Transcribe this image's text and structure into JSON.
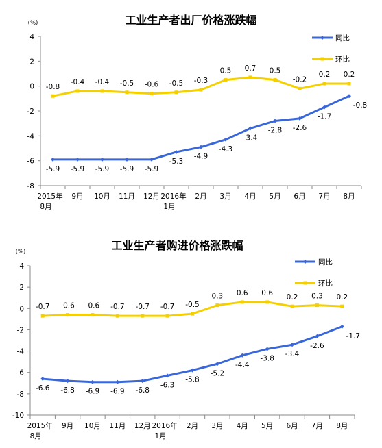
{
  "chart_data": [
    {
      "type": "line",
      "title": "工业生产者出厂价格涨跌幅",
      "unit": "(%)",
      "categories": [
        [
          "2015年",
          "8月"
        ],
        [
          "9月"
        ],
        [
          "10月"
        ],
        [
          "11月"
        ],
        [
          "12月"
        ],
        [
          "2016年",
          "1月"
        ],
        [
          "2月"
        ],
        [
          "3月"
        ],
        [
          "4月"
        ],
        [
          "5月"
        ],
        [
          "6月"
        ],
        [
          "7月"
        ],
        [
          "8月"
        ]
      ],
      "ylim": [
        -8,
        4
      ],
      "yticks": [
        4,
        2,
        0,
        -2,
        -4,
        -6,
        -8
      ],
      "legend": "top-right",
      "series": [
        {
          "name": "同比",
          "color": "#3A67D8",
          "values": [
            -5.9,
            -5.9,
            -5.9,
            -5.9,
            -5.9,
            -5.3,
            -4.9,
            -4.3,
            -3.4,
            -2.8,
            -2.6,
            -1.7,
            -0.8
          ],
          "labels": [
            "-5.9",
            "-5.9",
            "-5.9",
            "-5.9",
            "-5.9",
            "-5.3",
            "-4.9",
            "-4.3",
            "-3.4",
            "-2.8",
            "-2.6",
            "-1.7",
            "-0.8"
          ]
        },
        {
          "name": "环比",
          "color": "#F5D000",
          "values": [
            -0.8,
            -0.4,
            -0.4,
            -0.5,
            -0.6,
            -0.5,
            -0.3,
            0.5,
            0.7,
            0.5,
            -0.2,
            0.2,
            0.2
          ],
          "labels": [
            "-0.8",
            "-0.4",
            "-0.4",
            "-0.5",
            "-0.6",
            "-0.5",
            "-0.3",
            "0.5",
            "0.7",
            "0.5",
            "-0.2",
            "0.2",
            "0.2"
          ]
        }
      ]
    },
    {
      "type": "line",
      "title": "工业生产者购进价格涨跌幅",
      "unit": "(%)",
      "categories": [
        [
          "2015年",
          "8月"
        ],
        [
          "9月"
        ],
        [
          "10月"
        ],
        [
          "11月"
        ],
        [
          "12月"
        ],
        [
          "2016年",
          "1月"
        ],
        [
          "2月"
        ],
        [
          "3月"
        ],
        [
          "4月"
        ],
        [
          "5月"
        ],
        [
          "6月"
        ],
        [
          "7月"
        ],
        [
          "8月"
        ]
      ],
      "ylim": [
        -10,
        4
      ],
      "yticks": [
        4,
        2,
        0,
        -2,
        -4,
        -6,
        -8,
        -10
      ],
      "legend": "top-right",
      "series": [
        {
          "name": "同比",
          "color": "#3A67D8",
          "values": [
            -6.6,
            -6.8,
            -6.9,
            -6.9,
            -6.8,
            -6.3,
            -5.8,
            -5.2,
            -4.4,
            -3.8,
            -3.4,
            -2.6,
            -1.7
          ],
          "labels": [
            "-6.6",
            "-6.8",
            "-6.9",
            "-6.9",
            "-6.8",
            "-6.3",
            "-5.8",
            "-5.2",
            "-4.4",
            "-3.8",
            "-3.4",
            "-2.6",
            "-1.7"
          ]
        },
        {
          "name": "环比",
          "color": "#F5D000",
          "values": [
            -0.7,
            -0.6,
            -0.6,
            -0.7,
            -0.7,
            -0.7,
            -0.5,
            0.3,
            0.6,
            0.6,
            0.2,
            0.3,
            0.2
          ],
          "labels": [
            "-0.7",
            "-0.6",
            "-0.6",
            "-0.7",
            "-0.7",
            "-0.7",
            "-0.5",
            "0.3",
            "0.6",
            "0.6",
            "0.2",
            "0.3",
            "0.2"
          ]
        }
      ]
    }
  ]
}
